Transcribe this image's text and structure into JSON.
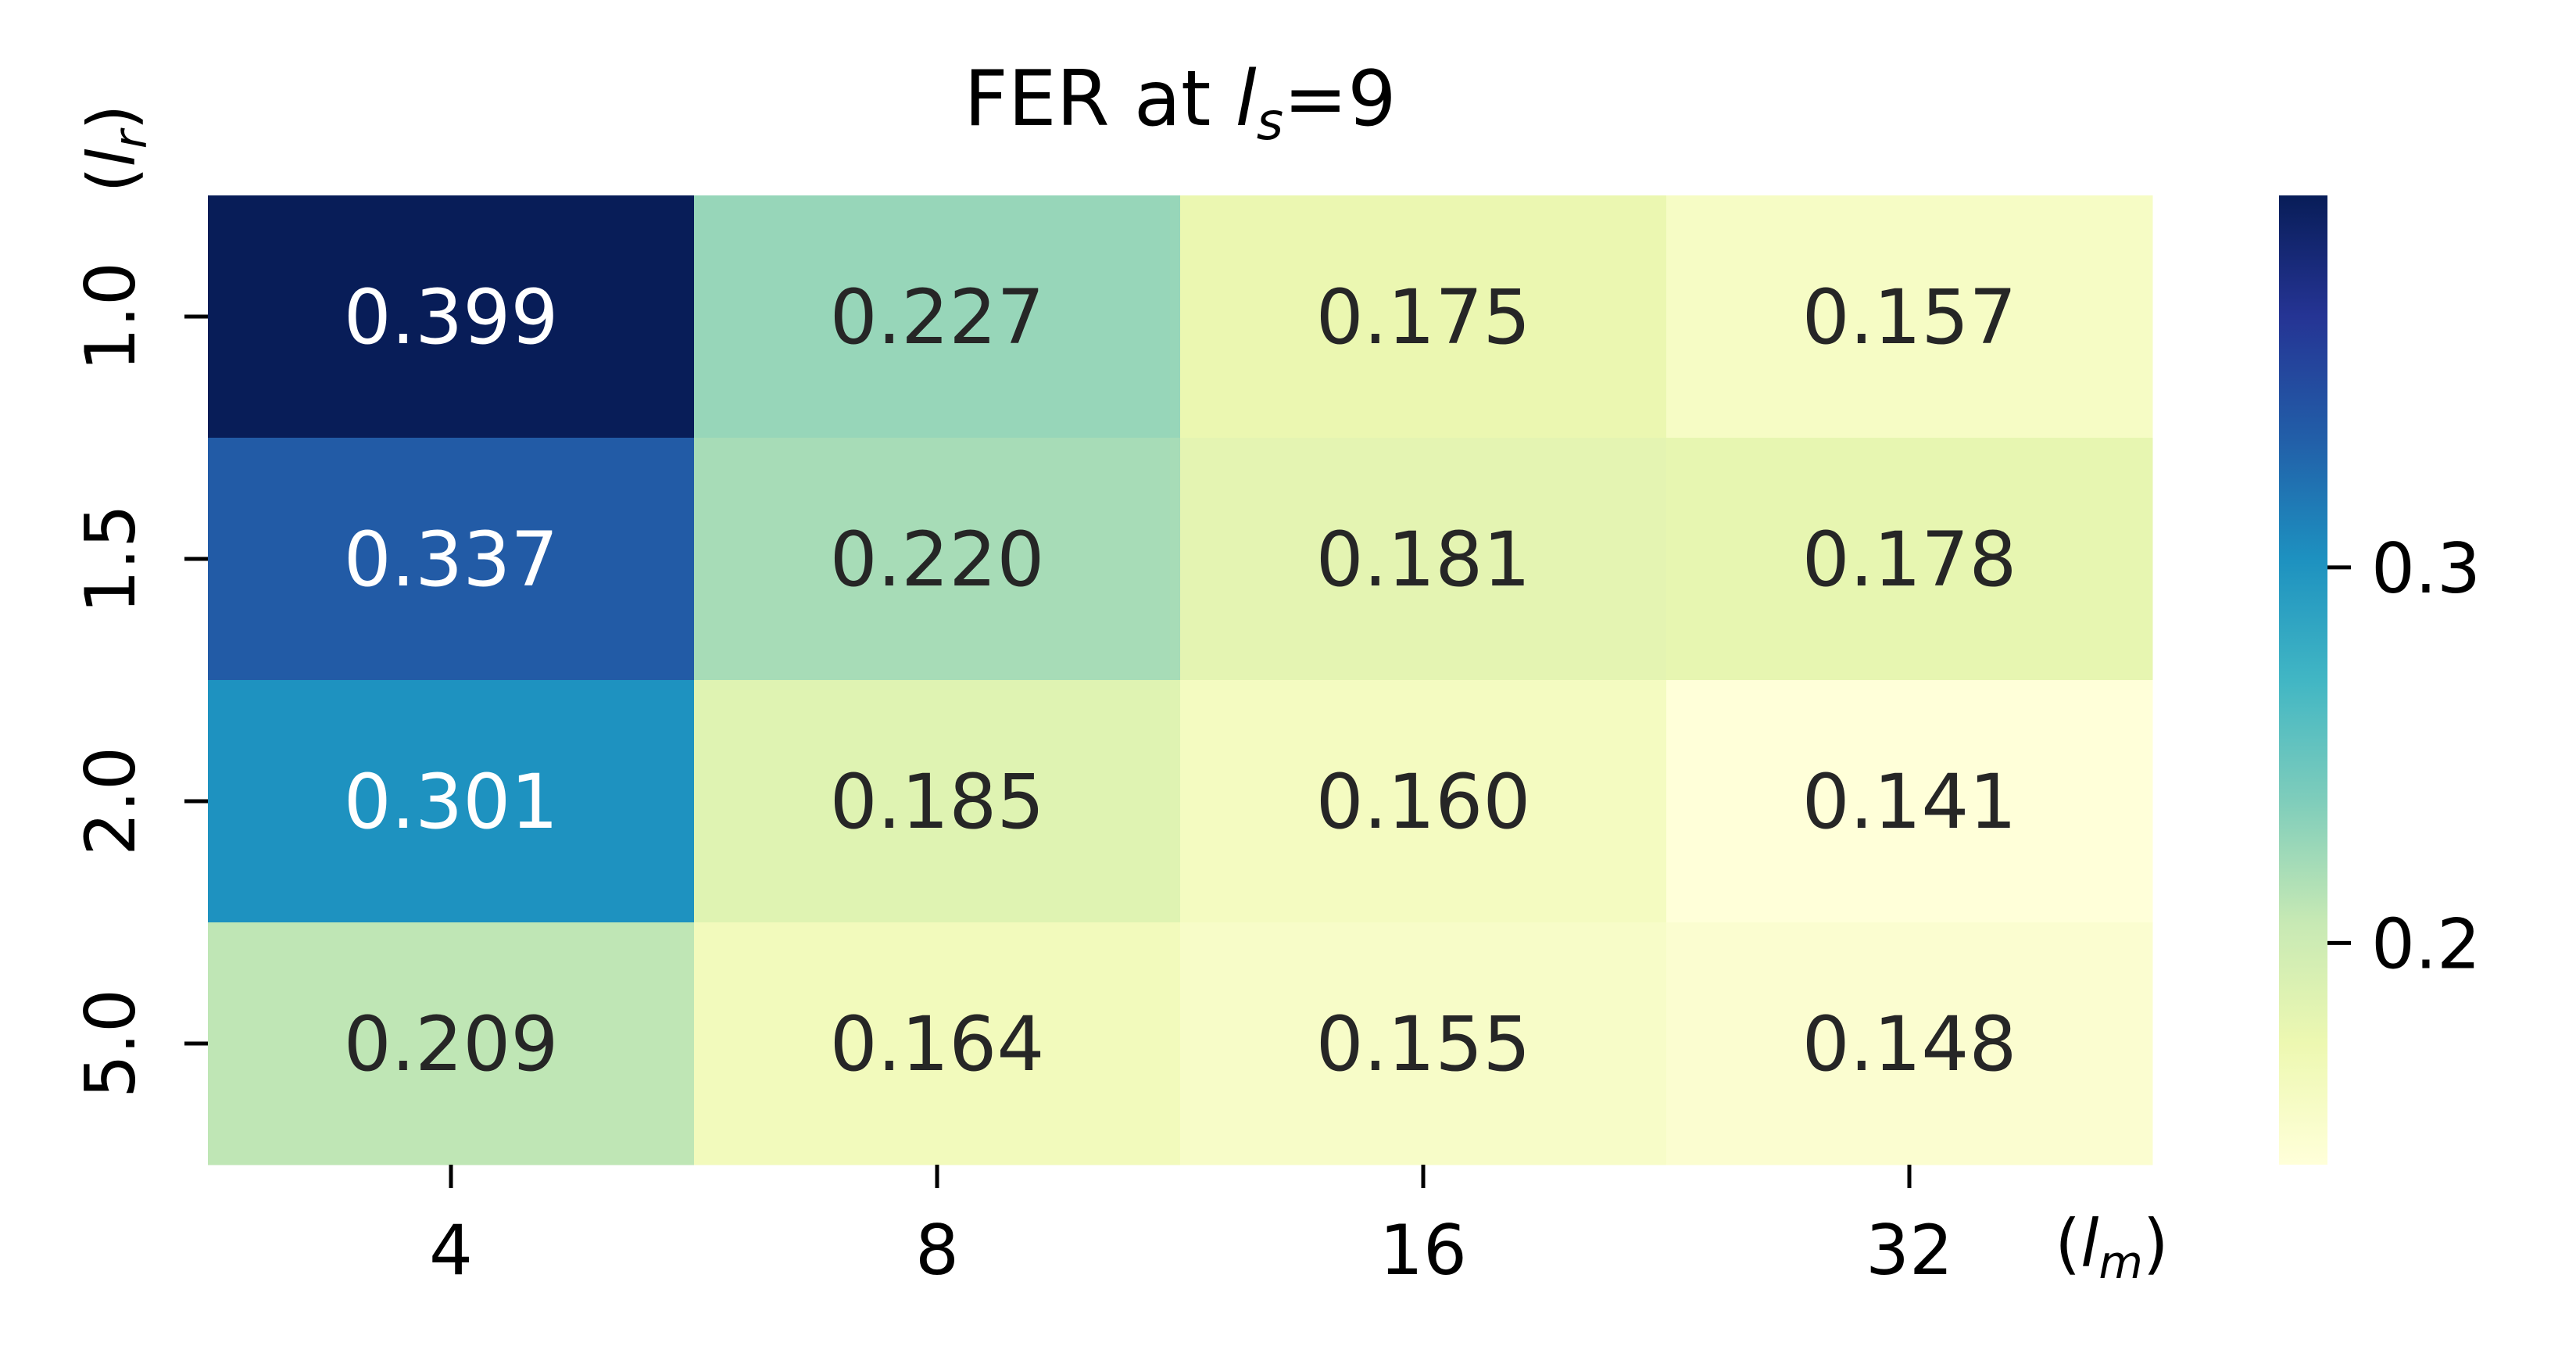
{
  "chart_data": {
    "type": "heatmap",
    "title_prefix": "FER at ",
    "title_var": "l",
    "title_sub": "s",
    "title_suffix": "=9",
    "x_tick_labels": [
      "4",
      "8",
      "16",
      "32"
    ],
    "y_tick_labels": [
      "1.0",
      "1.5",
      "2.0",
      "5.0"
    ],
    "x_axis_var": "l",
    "x_axis_sub": "m",
    "y_axis_var": "l",
    "y_axis_sub": "r",
    "values": [
      [
        0.399,
        0.227,
        0.175,
        0.157
      ],
      [
        0.337,
        0.22,
        0.181,
        0.178
      ],
      [
        0.301,
        0.185,
        0.16,
        0.141
      ],
      [
        0.209,
        0.164,
        0.155,
        0.148
      ]
    ],
    "cell_labels": [
      [
        "0.399",
        "0.227",
        "0.175",
        "0.157"
      ],
      [
        "0.337",
        "0.220",
        "0.181",
        "0.178"
      ],
      [
        "0.301",
        "0.185",
        "0.160",
        "0.141"
      ],
      [
        "0.209",
        "0.164",
        "0.155",
        "0.148"
      ]
    ],
    "colormap": "YlGnBu",
    "colormap_stops": [
      "#ffffd9",
      "#edf8b1",
      "#c7e9b4",
      "#7fcdbb",
      "#41b6c4",
      "#1d91c0",
      "#225ea8",
      "#253494",
      "#081d58"
    ],
    "colorbar_range": [
      0.141,
      0.399
    ],
    "colorbar_ticks": [
      0.2,
      0.3
    ],
    "colorbar_tick_labels": [
      "0.2",
      "0.3"
    ],
    "text_color_dark": "#262626",
    "text_color_light": "#ffffff",
    "axis_color": "#000000"
  }
}
